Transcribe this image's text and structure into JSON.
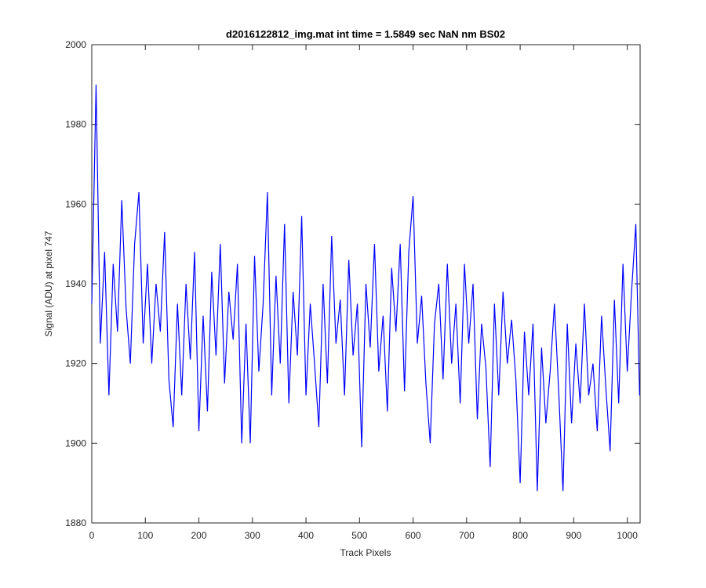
{
  "chart_data": {
    "type": "line",
    "title": "d2016122812_img.mat int time = 1.5849 sec  NaN nm BS02",
    "x_label": "Track Pixels",
    "y_label": "Signal (ADU) at pixel 747",
    "xlim": [
      0,
      1024
    ],
    "ylim": [
      1880,
      2000
    ],
    "xticks": [
      0,
      100,
      200,
      300,
      400,
      500,
      600,
      700,
      800,
      900,
      1000
    ],
    "yticks": [
      1880,
      1900,
      1920,
      1940,
      1960,
      1980,
      2000
    ],
    "x": [
      0,
      8,
      16,
      24,
      32,
      40,
      48,
      56,
      64,
      72,
      80,
      88,
      96,
      104,
      112,
      120,
      128,
      136,
      144,
      152,
      160,
      168,
      176,
      184,
      192,
      200,
      208,
      216,
      224,
      232,
      240,
      248,
      256,
      264,
      272,
      280,
      288,
      296,
      304,
      312,
      320,
      328,
      336,
      344,
      352,
      360,
      368,
      376,
      384,
      392,
      400,
      408,
      416,
      424,
      432,
      440,
      448,
      456,
      464,
      472,
      480,
      488,
      496,
      504,
      512,
      520,
      528,
      536,
      544,
      552,
      560,
      568,
      576,
      584,
      592,
      600,
      608,
      616,
      624,
      632,
      640,
      648,
      656,
      664,
      672,
      680,
      688,
      696,
      704,
      712,
      720,
      728,
      736,
      744,
      752,
      760,
      768,
      776,
      784,
      792,
      800,
      808,
      816,
      824,
      832,
      840,
      848,
      856,
      864,
      872,
      880,
      888,
      896,
      904,
      912,
      920,
      928,
      936,
      944,
      952,
      960,
      968,
      976,
      984,
      992,
      1000,
      1008,
      1016,
      1023
    ],
    "series": [
      {
        "name": "Signal",
        "color": "#0000ff",
        "values": [
          1935,
          1990,
          1925,
          1948,
          1912,
          1945,
          1928,
          1961,
          1934,
          1920,
          1950,
          1963,
          1925,
          1945,
          1920,
          1940,
          1928,
          1953,
          1916,
          1904,
          1935,
          1912,
          1940,
          1921,
          1948,
          1903,
          1932,
          1908,
          1943,
          1922,
          1950,
          1915,
          1938,
          1926,
          1945,
          1900,
          1930,
          1900,
          1947,
          1918,
          1935,
          1963,
          1912,
          1942,
          1920,
          1955,
          1910,
          1938,
          1922,
          1957,
          1912,
          1935,
          1920,
          1904,
          1940,
          1915,
          1952,
          1925,
          1936,
          1912,
          1946,
          1922,
          1935,
          1899,
          1940,
          1924,
          1950,
          1918,
          1932,
          1908,
          1944,
          1928,
          1950,
          1913,
          1948,
          1962,
          1925,
          1937,
          1915,
          1900,
          1930,
          1940,
          1916,
          1945,
          1920,
          1935,
          1910,
          1945,
          1925,
          1940,
          1906,
          1930,
          1919,
          1894,
          1935,
          1912,
          1938,
          1920,
          1931,
          1916,
          1890,
          1928,
          1912,
          1930,
          1888,
          1924,
          1905,
          1918,
          1935,
          1913,
          1888,
          1930,
          1905,
          1925,
          1910,
          1935,
          1912,
          1920,
          1903,
          1932,
          1914,
          1898,
          1936,
          1910,
          1945,
          1918,
          1938,
          1955,
          1912
        ]
      }
    ]
  }
}
